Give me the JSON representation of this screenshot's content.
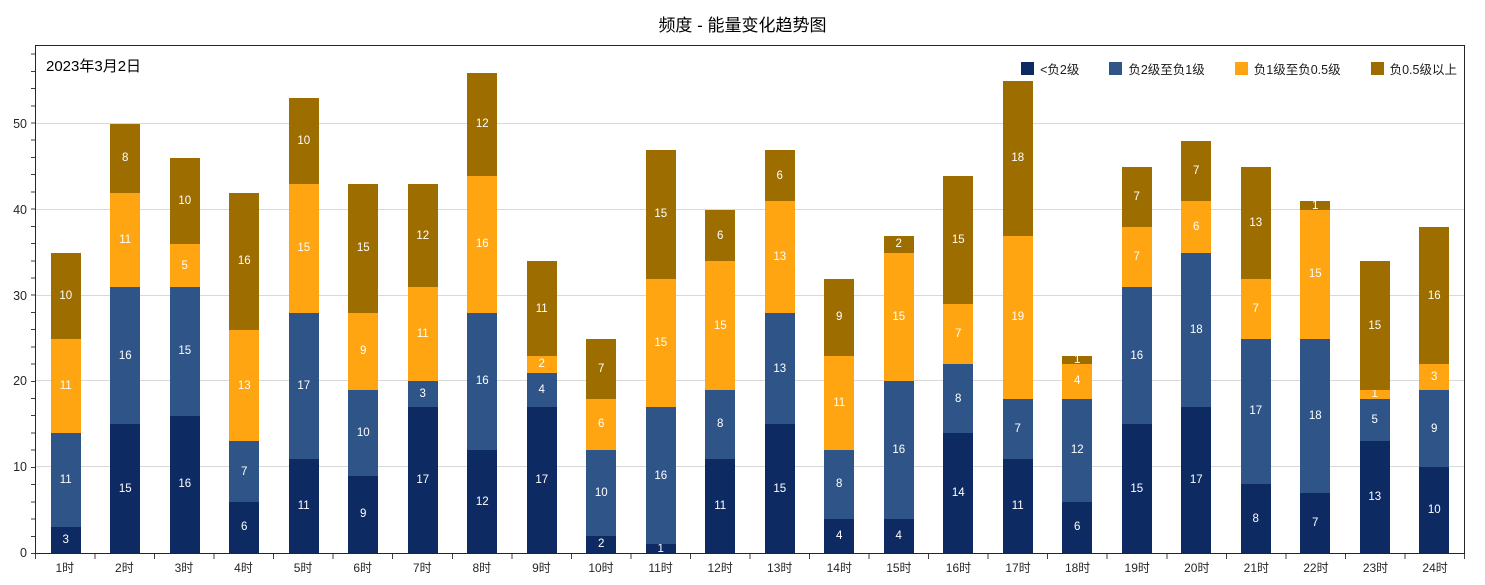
{
  "title": "频度 - 能量变化趋势图",
  "date_label": "2023年3月2日",
  "colors": {
    "background": "#ffffff",
    "grid": "#d9d9d9",
    "axis": "#262626",
    "series1": "#0e2a63",
    "series2": "#2f5488",
    "series3": "#ffa512",
    "series4": "#9e6d00",
    "segment_label": "#ffffff"
  },
  "chart_data": {
    "type": "bar",
    "stacked": true,
    "title": "频度 - 能量变化趋势图",
    "annotation": "2023年3月2日",
    "xlabel": "",
    "ylabel": "",
    "categories": [
      "1时",
      "2时",
      "3时",
      "4时",
      "5时",
      "6时",
      "7时",
      "8时",
      "9时",
      "10时",
      "11时",
      "12时",
      "13时",
      "14时",
      "15时",
      "16时",
      "17时",
      "18时",
      "19时",
      "20时",
      "21时",
      "22时",
      "23时",
      "24时"
    ],
    "series": [
      {
        "name": "<负2级",
        "color": "#0e2a63",
        "values": [
          3,
          15,
          16,
          6,
          11,
          9,
          17,
          12,
          17,
          2,
          1,
          11,
          15,
          4,
          4,
          14,
          11,
          6,
          15,
          17,
          8,
          7,
          13,
          10
        ]
      },
      {
        "name": "负2级至负1级",
        "color": "#2f5488",
        "values": [
          11,
          16,
          15,
          7,
          17,
          10,
          3,
          16,
          4,
          10,
          16,
          8,
          13,
          8,
          16,
          8,
          7,
          12,
          16,
          18,
          17,
          18,
          5,
          9
        ]
      },
      {
        "name": "负1级至负0.5级",
        "color": "#ffa512",
        "values": [
          11,
          11,
          5,
          13,
          15,
          9,
          11,
          16,
          2,
          6,
          15,
          15,
          13,
          11,
          15,
          7,
          19,
          4,
          7,
          6,
          7,
          15,
          1,
          3
        ]
      },
      {
        "name": "负0.5级以上",
        "color": "#9e6d00",
        "values": [
          10,
          8,
          10,
          16,
          10,
          15,
          12,
          12,
          11,
          7,
          15,
          6,
          6,
          9,
          2,
          15,
          18,
          1,
          7,
          7,
          13,
          1,
          15,
          16
        ]
      }
    ],
    "totals": [
      35,
      50,
      46,
      42,
      53,
      43,
      43,
      56,
      34,
      25,
      47,
      40,
      47,
      32,
      37,
      44,
      55,
      23,
      45,
      48,
      45,
      41,
      34,
      38
    ],
    "yticks": [
      0,
      10,
      20,
      30,
      40,
      50
    ],
    "ylim": [
      0,
      59.1
    ],
    "grid": true,
    "legend_position": "top-right-inside"
  }
}
